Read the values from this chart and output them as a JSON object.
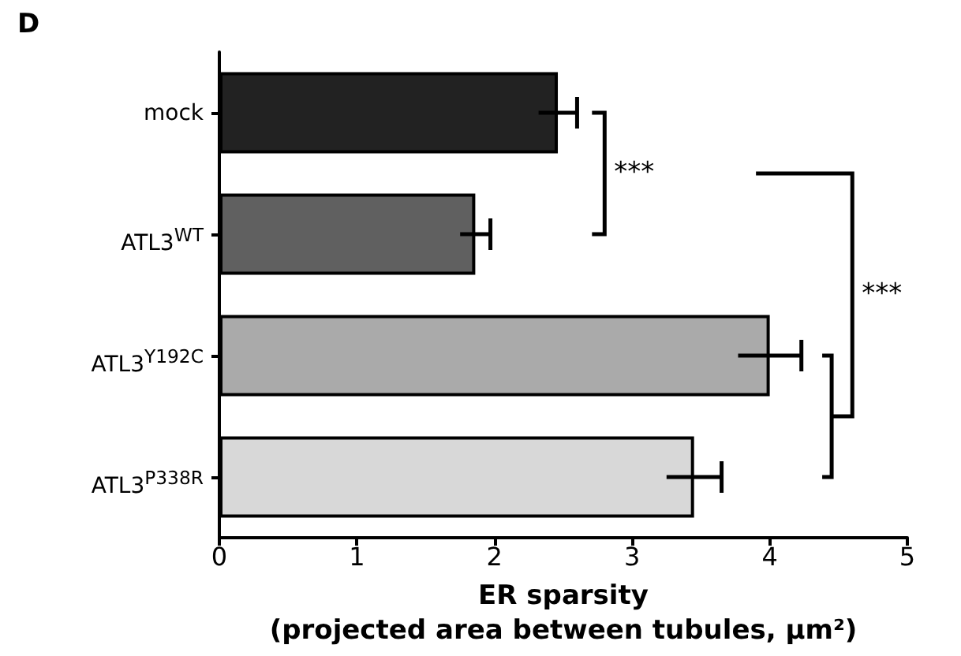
{
  "chart_data": {
    "type": "bar",
    "orientation": "horizontal",
    "title": "D",
    "xlabel": "ER sparsity\n(projected area between tubules, µm²)",
    "categories": [
      "mock",
      "ATL3$^{WT}$",
      "ATL3$^{Y192C}$",
      "ATL3$^{P338R}$"
    ],
    "values": [
      2.46,
      1.86,
      4.0,
      3.45
    ],
    "errors": [
      0.14,
      0.11,
      0.23,
      0.2
    ],
    "colors": [
      "#222222",
      "#606060",
      "#aaaaaa",
      "#d8d8d8"
    ],
    "xlim": [
      0,
      5
    ],
    "xticks": [
      0,
      1,
      2,
      3,
      4,
      5
    ],
    "grid": false,
    "annotations": [
      "***",
      "***"
    ]
  }
}
